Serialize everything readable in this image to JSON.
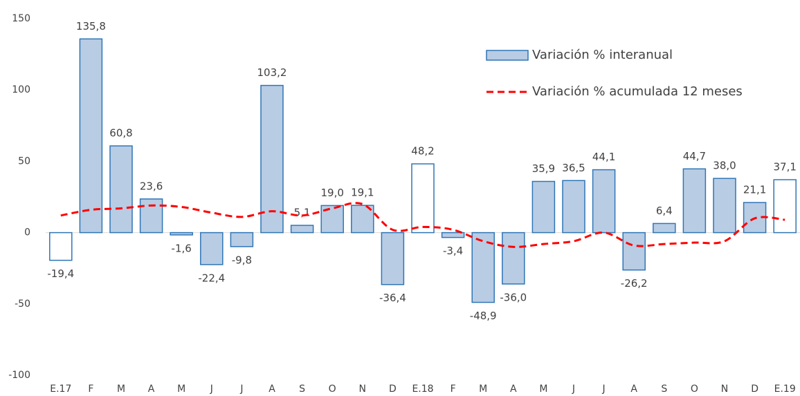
{
  "chart_data": {
    "type": "bar-line",
    "categories": [
      "E.17",
      "F",
      "M",
      "A",
      "M",
      "J",
      "J",
      "A",
      "S",
      "O",
      "N",
      "D",
      "E.18",
      "F",
      "M",
      "A",
      "M",
      "J",
      "J",
      "A",
      "S",
      "O",
      "N",
      "D",
      "E.19"
    ],
    "series": [
      {
        "name": "Variación % interanual",
        "type": "bar",
        "color": "#b8cce4",
        "edge_color": "#2e75b6",
        "highlight_color": "#ffffff",
        "highlight_indices": [
          0,
          12,
          24
        ],
        "values": [
          -19.4,
          135.8,
          60.8,
          23.6,
          -1.6,
          -22.4,
          -9.8,
          103.2,
          5.1,
          19.0,
          19.1,
          -36.4,
          48.2,
          -3.4,
          -48.9,
          -36.0,
          35.9,
          36.5,
          44.1,
          -26.2,
          6.4,
          44.7,
          38.0,
          21.1,
          37.1
        ],
        "value_labels": [
          "-19,4",
          "135,8",
          "60,8",
          "23,6",
          "-1,6",
          "-22,4",
          "-9,8",
          "103,2",
          "5,1",
          "19,0",
          "19,1",
          "-36,4",
          "48,2",
          "-3,4",
          "-48,9",
          "-36,0",
          "35,9",
          "36,5",
          "44,1",
          "-26,2",
          "6,4",
          "44,7",
          "38,0",
          "21,1",
          "37,1"
        ]
      },
      {
        "name": "Variación % acumulada 12 meses",
        "type": "line",
        "color": "#ff0000",
        "dash": true,
        "values": [
          12,
          16,
          17,
          19,
          18,
          14,
          11,
          15,
          12,
          17,
          20,
          2,
          4,
          2,
          -6,
          -10,
          -8,
          -6,
          0,
          -9,
          -8,
          -7,
          -6,
          10,
          9
        ]
      }
    ],
    "ylim": [
      -100,
      150
    ],
    "yticks": [
      -100,
      -50,
      0,
      50,
      100,
      150
    ],
    "grid": false
  }
}
